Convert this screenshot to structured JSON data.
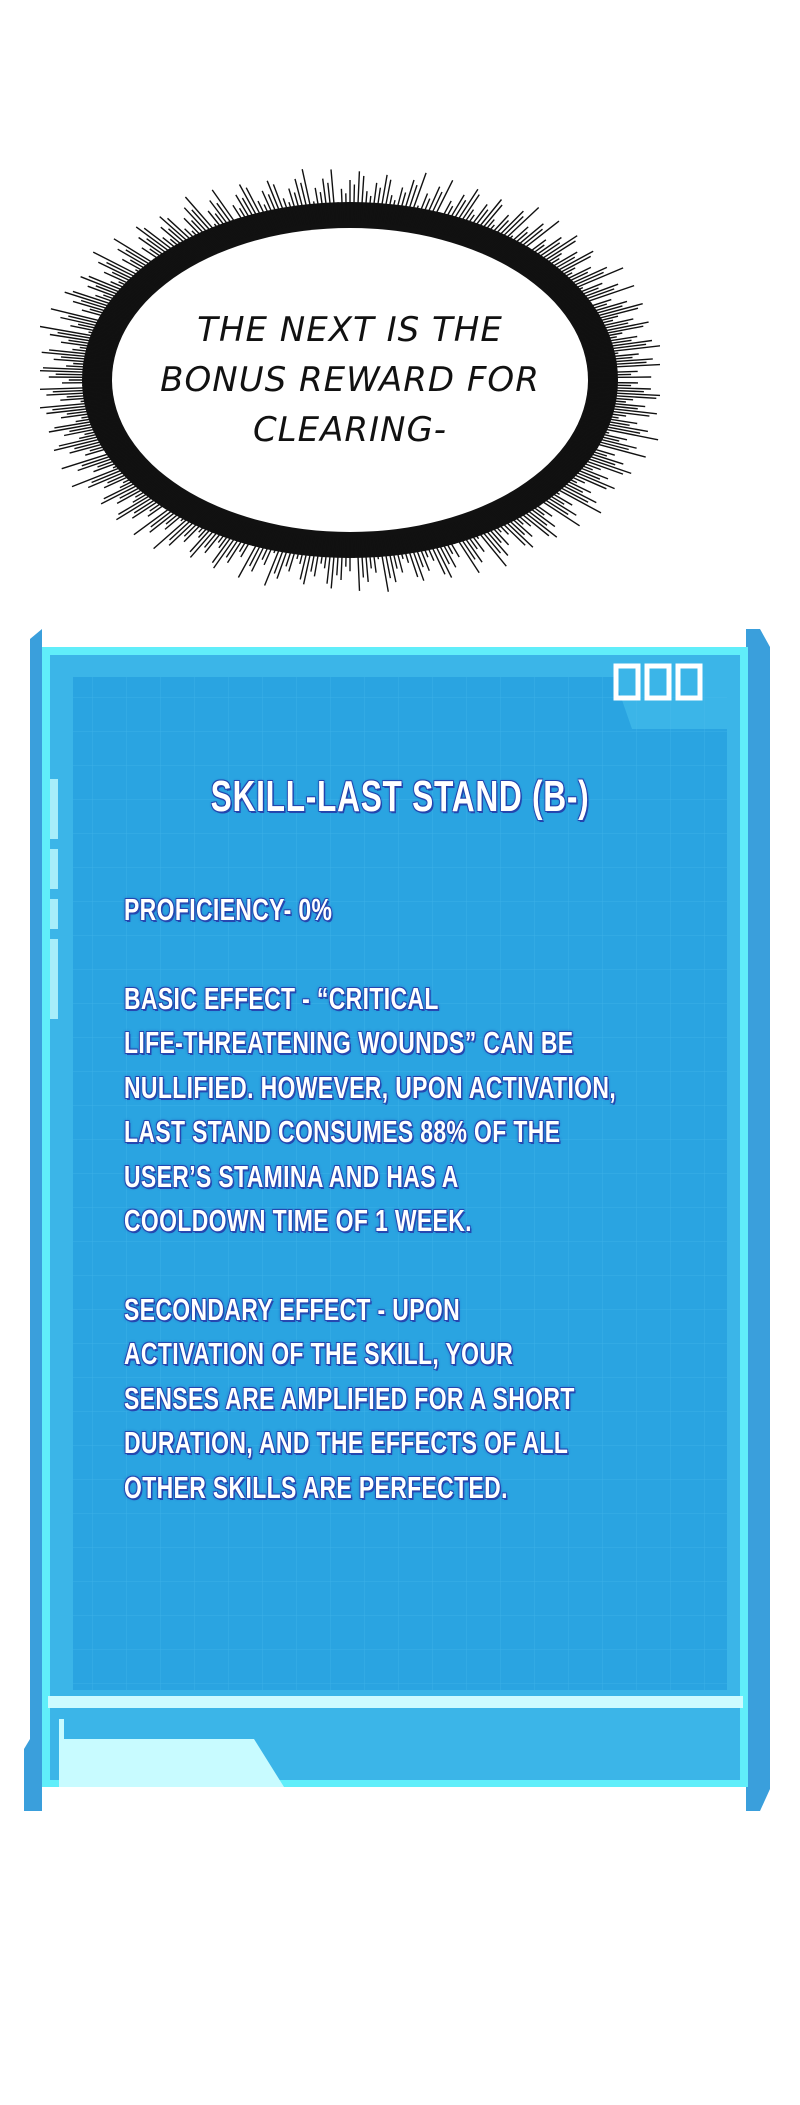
{
  "speech_bubble": {
    "lines": [
      "THE NEXT IS THE",
      "BONUS REWARD FOR",
      "CLEARING-"
    ]
  },
  "system_panel": {
    "colors": {
      "frame": "#3aa7e0",
      "glow": "#66f3fb",
      "inner": "#2ca6e2",
      "text": "#ffffff",
      "text_outline": "#2547b0"
    },
    "title": "SKILL-LAST STAND (B-)",
    "proficiency": "PROFICIENCY- 0%",
    "basic_effect": [
      "BASIC EFFECT - “CRITICAL",
      "LIFE-THREATENING WOUNDS” CAN BE",
      "NULLIFIED. HOWEVER, UPON ACTIVATION,",
      "LAST STAND CONSUMES 88% OF THE",
      "USER’S STAMINA AND HAS A",
      "COOLDOWN TIME OF 1 WEEK."
    ],
    "secondary_effect": [
      "SECONDARY EFFECT - UPON",
      "ACTIVATION OF THE SKILL, YOUR",
      "SENSES ARE AMPLIFIED FOR A SHORT",
      "DURATION, AND THE EFFECTS OF ALL",
      "OTHER SKILLS ARE PERFECTED."
    ]
  }
}
